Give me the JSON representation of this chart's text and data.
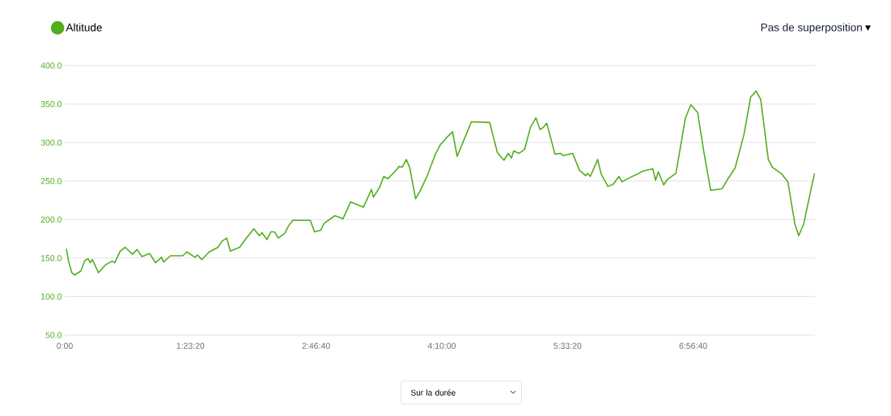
{
  "chart_data": {
    "type": "line",
    "ylim": [
      50,
      400
    ],
    "xlim": [
      0,
      8.29
    ],
    "yticks": [
      {
        "value": 50,
        "label": "50.0"
      },
      {
        "value": 100,
        "label": "100.0"
      },
      {
        "value": 150,
        "label": "150.0"
      },
      {
        "value": 200,
        "label": "200.0"
      },
      {
        "value": 250,
        "label": "250.0"
      },
      {
        "value": 300,
        "label": "300.0"
      },
      {
        "value": 350,
        "label": "350.0"
      },
      {
        "value": 400,
        "label": "400.0"
      }
    ],
    "xticks": [
      {
        "value": 0,
        "label": "0:00"
      },
      {
        "value": 1.3889,
        "label": "1:23:20"
      },
      {
        "value": 2.7778,
        "label": "2:46:40"
      },
      {
        "value": 4.1667,
        "label": "4:10:00"
      },
      {
        "value": 5.5556,
        "label": "5:33:20"
      },
      {
        "value": 6.9444,
        "label": "6:56:40"
      }
    ],
    "grid": "y",
    "legend": "top left",
    "marker": "none",
    "line_style": "solid",
    "annotations": [
      "Pas de superposition",
      "Sur la durée"
    ],
    "series": [
      {
        "name": "Altitude",
        "color": "#52ae1c",
        "x": [
          0.018,
          0.042,
          0.078,
          0.108,
          0.177,
          0.223,
          0.259,
          0.282,
          0.306,
          0.372,
          0.448,
          0.523,
          0.552,
          0.613,
          0.667,
          0.748,
          0.799,
          0.853,
          0.937,
          1.003,
          1.069,
          1.093,
          1.168,
          1.304,
          1.349,
          1.439,
          1.468,
          1.514,
          1.597,
          1.694,
          1.739,
          1.79,
          1.829,
          1.934,
          1.994,
          2.09,
          2.15,
          2.18,
          2.234,
          2.279,
          2.318,
          2.36,
          2.43,
          2.475,
          2.52,
          2.714,
          2.759,
          2.829,
          2.865,
          2.985,
          3.075,
          3.159,
          3.3,
          3.39,
          3.412,
          3.48,
          3.525,
          3.57,
          3.646,
          3.696,
          3.73,
          3.775,
          3.811,
          3.877,
          3.931,
          4.006,
          4.096,
          4.15,
          4.216,
          4.286,
          4.336,
          4.421,
          4.493,
          4.696,
          4.781,
          4.853,
          4.901,
          4.937,
          4.961,
          5.021,
          5.081,
          5.147,
          5.207,
          5.252,
          5.282,
          5.327,
          5.417,
          5.477,
          5.507,
          5.613,
          5.688,
          5.757,
          5.778,
          5.808,
          5.889,
          5.928,
          6.003,
          6.063,
          6.123,
          6.159,
          6.219,
          6.309,
          6.394,
          6.498,
          6.529,
          6.559,
          6.619,
          6.658,
          6.754,
          6.814,
          6.859,
          6.919,
          6.994,
          7.061,
          7.138,
          7.264,
          7.324,
          7.408,
          7.505,
          7.58,
          7.64,
          7.691,
          7.775,
          7.82,
          7.925,
          7.991,
          8.069,
          8.111,
          8.165,
          8.261,
          8.286
        ],
        "values": [
          162,
          146,
          131,
          128,
          133,
          147,
          149,
          144,
          148,
          131,
          141,
          146,
          144,
          159,
          164,
          155,
          161,
          152,
          156,
          144,
          151,
          145,
          153,
          153,
          158,
          151,
          154,
          148,
          158,
          164,
          172,
          176,
          159,
          164,
          174,
          188,
          179,
          183,
          174,
          184,
          184,
          176,
          182,
          192,
          199,
          199,
          184,
          186,
          195,
          205,
          201,
          223,
          216,
          239,
          229,
          242,
          256,
          253,
          262,
          269,
          268,
          278,
          268,
          227,
          238,
          257,
          285,
          297,
          306,
          314,
          282,
          306,
          327,
          326,
          287,
          277,
          286,
          280,
          289,
          286,
          291,
          320,
          332,
          317,
          319,
          325,
          285,
          286,
          283,
          286,
          264,
          257,
          260,
          256,
          278,
          259,
          243,
          246,
          256,
          249,
          253,
          258,
          263,
          266,
          251,
          262,
          245,
          252,
          260,
          301,
          332,
          349,
          339,
          289,
          238,
          240,
          252,
          267,
          310,
          359,
          367,
          356,
          278,
          268,
          259,
          249,
          194,
          179,
          194,
          247,
          260
        ]
      }
    ]
  }
}
